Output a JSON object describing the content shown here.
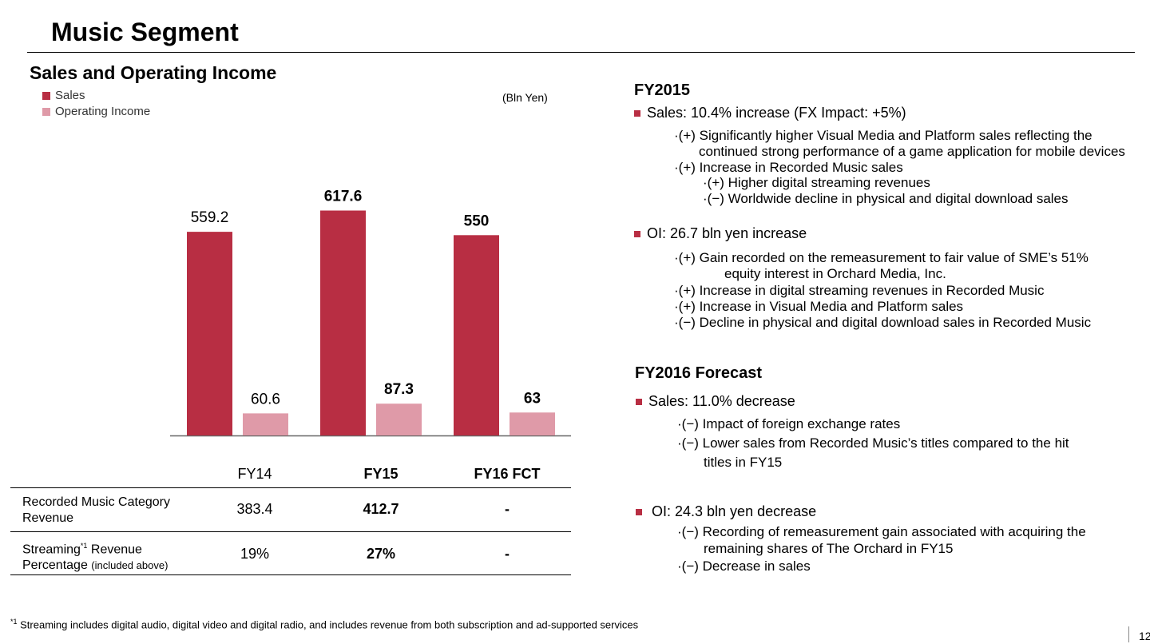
{
  "slide": {
    "title": "Music Segment",
    "page_number": "12"
  },
  "chart_data": {
    "type": "bar",
    "title": "Sales and Operating Income",
    "unit": "(Bln Yen)",
    "categories": [
      "FY14",
      "FY15",
      "FY16 FCT"
    ],
    "series": [
      {
        "name": "Sales",
        "values": [
          559.2,
          617.6,
          550
        ],
        "labels": [
          "559.2",
          "617.6",
          "550"
        ],
        "color": "#b82e43"
      },
      {
        "name": "Operating Income",
        "values": [
          60.6,
          87.3,
          63
        ],
        "labels": [
          "60.6",
          "87.3",
          "63"
        ],
        "color": "#df9aa8"
      }
    ],
    "bold_categories": [
      "FY15",
      "FY16 FCT"
    ],
    "axis_color": "#666666",
    "legend_position": "top-left"
  },
  "table": {
    "headers": [
      "FY14",
      "FY15",
      "FY16 FCT"
    ],
    "rows": [
      {
        "label_line1": "Recorded Music Category",
        "label_line2": "Revenue",
        "values": [
          "383.4",
          "412.7",
          "-"
        ]
      },
      {
        "label_line1": "Streaming",
        "label_sup": "*1",
        "label_line1_tail": " Revenue",
        "label_line2": "Percentage ",
        "label_note": "(included above)",
        "values": [
          "19%",
          "27%",
          "-"
        ]
      }
    ]
  },
  "fy2015": {
    "title": "FY2015",
    "sales_bullet": "Sales: 10.4% increase (FX Impact:  +5%)",
    "sales_points": [
      "·(+) Significantly higher Visual Media and Platform sales reflecting the",
      "continued strong performance of a game application for mobile devices",
      "·(+) Increase in Recorded Music sales",
      "·(+) Higher digital streaming revenues",
      "·(−) Worldwide decline in physical and digital download sales"
    ],
    "oi_bullet": "OI: 26.7 bln yen increase",
    "oi_points": [
      "·(+) Gain recorded on the remeasurement to fair value of SME’s 51%",
      "equity interest in Orchard Media, Inc.",
      "·(+) Increase in digital streaming revenues in Recorded Music",
      "·(+) Increase in Visual Media and Platform sales",
      "·(−)  Decline in physical and digital download sales in Recorded Music"
    ]
  },
  "fy2016": {
    "title": "FY2016 Forecast",
    "sales_bullet": "Sales: 11.0% decrease",
    "sales_points": [
      "·(−) Impact of foreign exchange rates",
      "·(−) Lower sales from Recorded Music’s titles compared to the hit",
      "titles in FY15"
    ],
    "oi_bullet": "OI: 24.3 bln yen decrease",
    "oi_points": [
      "·(−) Recording of remeasurement gain associated with acquiring the",
      "remaining shares of The Orchard in FY15",
      "·(−) Decrease in sales"
    ]
  },
  "footnote": {
    "mark": "*1",
    "text": " Streaming includes digital audio, digital video and digital radio, and includes revenue from both subscription and ad-supported services"
  }
}
